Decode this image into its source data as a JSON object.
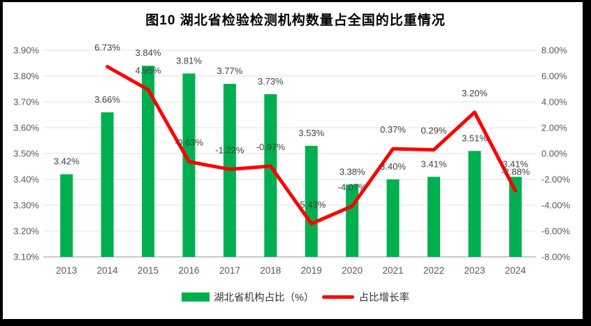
{
  "chart": {
    "title": "图10 湖北省检验检测机构数量占全国的比重情况",
    "legend": [
      {
        "label": "湖北省机构占比（%）",
        "color": "#00B050",
        "marker": "bar-swatch"
      },
      {
        "label": "占比增长率",
        "color": "#FF0000",
        "marker": "line-swatch"
      }
    ]
  },
  "chart_data": {
    "type": "bar+line",
    "title": "图10 湖北省检验检测机构数量占全国的比重情况",
    "categories": [
      "2013",
      "2014",
      "2015",
      "2016",
      "2017",
      "2018",
      "2019",
      "2020",
      "2021",
      "2022",
      "2023",
      "2024"
    ],
    "series": [
      {
        "name": "湖北省机构占比（%）",
        "type": "bar",
        "axis": "left",
        "color": "#00B050",
        "values": [
          3.42,
          3.66,
          3.84,
          3.81,
          3.77,
          3.73,
          3.53,
          3.38,
          3.4,
          3.41,
          3.51,
          3.41
        ],
        "labels": [
          "3.42%",
          "3.66%",
          "3.84%",
          "3.81%",
          "3.77%",
          "3.73%",
          "3.53%",
          "3.38%",
          "3.40%",
          "3.41%",
          "3.51%",
          "3.41%"
        ]
      },
      {
        "name": "占比增长率",
        "type": "line",
        "axis": "right",
        "color": "#FF0000",
        "values": [
          null,
          6.73,
          4.95,
          -0.63,
          -1.22,
          -0.97,
          -5.43,
          -4.07,
          0.37,
          0.29,
          3.2,
          -2.88
        ],
        "labels": [
          null,
          "6.73%",
          "4.95%",
          "-0.63%",
          "-1.22%",
          "-0.97%",
          "-5.43%",
          "-4.07%",
          "0.37%",
          "0.29%",
          "3.20%",
          "-2.88%"
        ]
      }
    ],
    "left_axis": {
      "min": 3.1,
      "max": 3.9,
      "tick_step": 0.1,
      "tick_labels_top_to_bottom": [
        "3.90%",
        "3.80%",
        "3.70%",
        "3.60%",
        "3.50%",
        "3.40%",
        "3.30%",
        "3.20%",
        "3.10%"
      ]
    },
    "right_axis": {
      "min": -8.0,
      "max": 8.0,
      "tick_step": 2.0,
      "tick_labels_top_to_bottom": [
        "8.00%",
        "6.00%",
        "4.00%",
        "2.00%",
        "0.00%",
        "-2.00%",
        "-4.00%",
        "-6.00%",
        "-8.00%"
      ]
    },
    "gridlines": true,
    "legend_position": "bottom"
  },
  "colors": {
    "bar": "#00B050",
    "line": "#FF0000",
    "grid": "#E2E2E2",
    "axis_line": "#C9C9C9",
    "tick_text": "#595959",
    "label_text": "#404040",
    "title_text": "#000000",
    "frame_border": "#000000"
  }
}
